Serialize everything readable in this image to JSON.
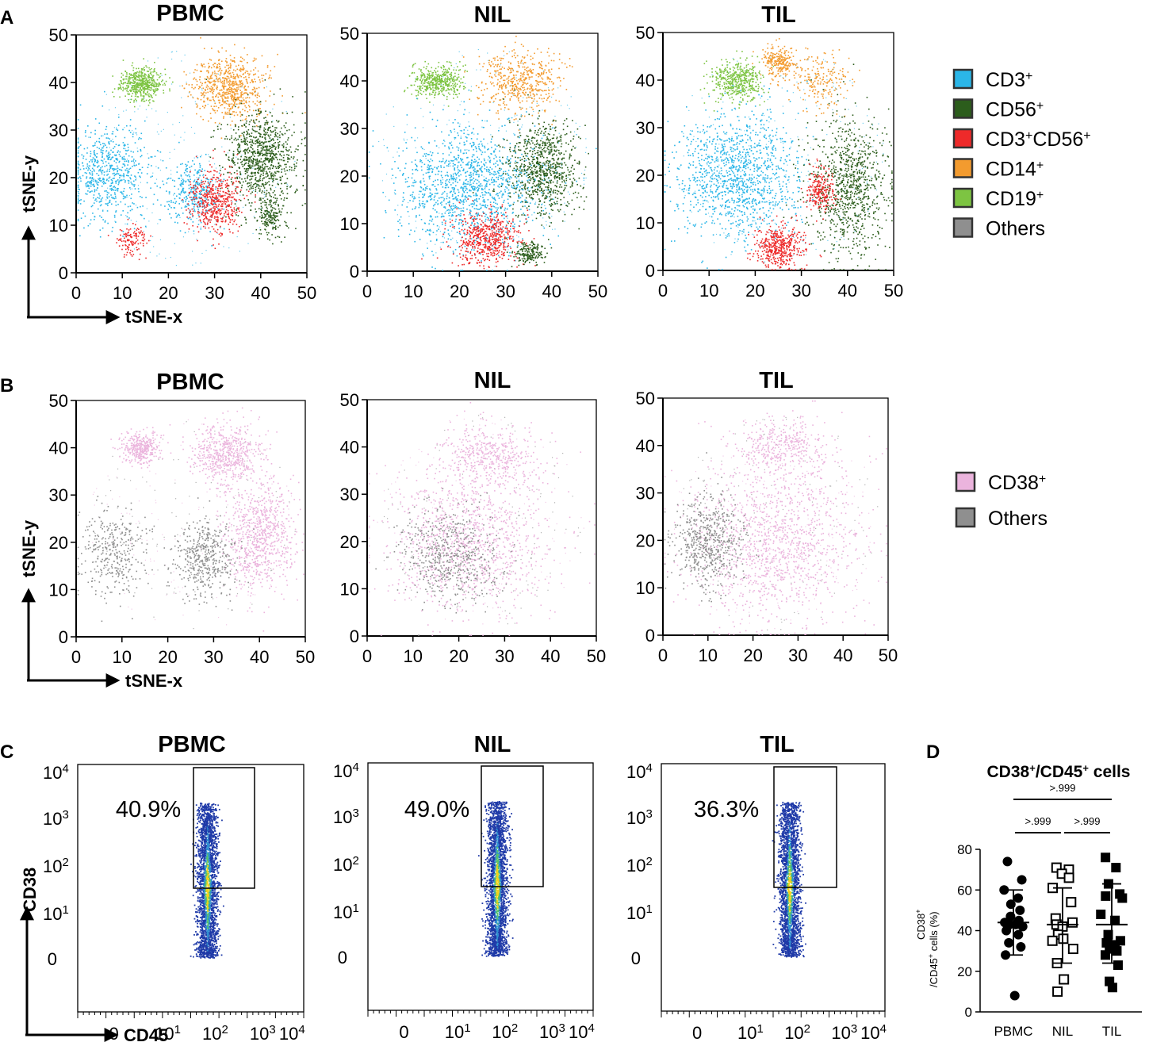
{
  "figure": {
    "panel_labels": {
      "a": "A",
      "b": "B",
      "c": "C",
      "d": "D"
    },
    "samples": [
      "PBMC",
      "NIL",
      "TIL"
    ],
    "tsne": {
      "x_axis_label": "tSNE-x",
      "y_axis_label": "tSNE-y",
      "ticks": [
        "0",
        "10",
        "20",
        "30",
        "40",
        "50"
      ]
    },
    "legend_a": [
      {
        "label": "CD3",
        "sup": "+",
        "color": "#2BB6E8"
      },
      {
        "label": "CD56",
        "sup": "+",
        "color": "#2C5D1C"
      },
      {
        "label": "CD3",
        "sup": "+",
        "label2": "CD56",
        "sup2": "+",
        "color": "#EE2A2A"
      },
      {
        "label": "CD14",
        "sup": "+",
        "color": "#F39B2F"
      },
      {
        "label": "CD19",
        "sup": "+",
        "color": "#7DC442"
      },
      {
        "label": "Others",
        "sup": "",
        "color": "#8F8F8F"
      }
    ],
    "legend_b": [
      {
        "label": "CD38",
        "sup": "+",
        "color": "#EBB4DD"
      },
      {
        "label": "Others",
        "sup": "",
        "color": "#8F8F8F"
      }
    ],
    "flow": {
      "x_axis_label": "CD45",
      "y_axis_label": "CD38",
      "tick_zero": "0",
      "tick_base": "10",
      "y_exponents": [
        "1",
        "2",
        "3",
        "4"
      ],
      "x_exponents": [
        "1",
        "2",
        "3",
        "4"
      ],
      "gate_percentages": [
        "40.9%",
        "49.0%",
        "36.3%"
      ]
    }
  },
  "chart_data": [
    {
      "type": "scatter",
      "panel": "A",
      "description_of_mark": "tSNE embedding colored by population",
      "facets": [
        "PBMC",
        "NIL",
        "TIL"
      ],
      "xlabel": "tSNE-x",
      "ylabel": "tSNE-y",
      "xlim": [
        0,
        50
      ],
      "ylim": [
        0,
        50
      ],
      "clusters": {
        "PBMC": [
          {
            "pop": "CD19+",
            "cx": 14,
            "cy": 40,
            "rx": 4,
            "ry": 3,
            "n": 500
          },
          {
            "pop": "CD14+",
            "cx": 33,
            "cy": 39,
            "rx": 7,
            "ry": 6,
            "n": 700
          },
          {
            "pop": "CD56+",
            "cx": 40,
            "cy": 24,
            "rx": 7,
            "ry": 9,
            "n": 900
          },
          {
            "pop": "CD3+",
            "cx": 7,
            "cy": 21,
            "rx": 8,
            "ry": 9,
            "n": 650
          },
          {
            "pop": "CD3+",
            "cx": 25,
            "cy": 17,
            "rx": 5,
            "ry": 6,
            "n": 350
          },
          {
            "pop": "CD3+CD56+",
            "cx": 30,
            "cy": 15,
            "rx": 5,
            "ry": 6,
            "n": 500
          },
          {
            "pop": "CD3+CD56+",
            "cx": 12,
            "cy": 7,
            "rx": 3,
            "ry": 3,
            "n": 120
          },
          {
            "pop": "CD56+",
            "cx": 42,
            "cy": 12,
            "rx": 3,
            "ry": 4,
            "n": 180
          }
        ],
        "NIL": [
          {
            "pop": "CD19+",
            "cx": 15,
            "cy": 40,
            "rx": 5,
            "ry": 3,
            "n": 450
          },
          {
            "pop": "CD14+",
            "cx": 33,
            "cy": 40,
            "rx": 8,
            "ry": 6,
            "n": 500
          },
          {
            "pop": "CD3+",
            "cx": 22,
            "cy": 18,
            "rx": 14,
            "ry": 12,
            "n": 1300
          },
          {
            "pop": "CD56+",
            "cx": 38,
            "cy": 22,
            "rx": 7,
            "ry": 9,
            "n": 800
          },
          {
            "pop": "CD3+CD56+",
            "cx": 26,
            "cy": 7,
            "rx": 7,
            "ry": 5,
            "n": 550
          },
          {
            "pop": "CD56+",
            "cx": 35,
            "cy": 4,
            "rx": 3,
            "ry": 2,
            "n": 180
          }
        ],
        "TIL": [
          {
            "pop": "CD19+",
            "cx": 16,
            "cy": 40,
            "rx": 5,
            "ry": 4,
            "n": 450
          },
          {
            "pop": "CD14+",
            "cx": 25,
            "cy": 44,
            "rx": 3,
            "ry": 3,
            "n": 250
          },
          {
            "pop": "CD14+",
            "cx": 34,
            "cy": 40,
            "rx": 7,
            "ry": 5,
            "n": 200
          },
          {
            "pop": "CD3+",
            "cx": 16,
            "cy": 20,
            "rx": 12,
            "ry": 12,
            "n": 1200
          },
          {
            "pop": "CD56+",
            "cx": 40,
            "cy": 18,
            "rx": 8,
            "ry": 13,
            "n": 900
          },
          {
            "pop": "CD3+CD56+",
            "cx": 25,
            "cy": 5,
            "rx": 5,
            "ry": 4,
            "n": 450
          },
          {
            "pop": "CD3+CD56+",
            "cx": 34,
            "cy": 17,
            "rx": 3,
            "ry": 4,
            "n": 220
          }
        ]
      }
    },
    {
      "type": "scatter",
      "panel": "B",
      "description_of_mark": "tSNE embedding colored by CD38 expression",
      "facets": [
        "PBMC",
        "NIL",
        "TIL"
      ],
      "xlabel": "tSNE-x",
      "ylabel": "tSNE-y",
      "xlim": [
        0,
        50
      ],
      "ylim": [
        0,
        50
      ],
      "clusters": {
        "PBMC": [
          {
            "pop": "CD38+",
            "cx": 14,
            "cy": 40,
            "rx": 4,
            "ry": 3,
            "n": 350
          },
          {
            "pop": "CD38+",
            "cx": 33,
            "cy": 39,
            "rx": 7,
            "ry": 6,
            "n": 600
          },
          {
            "pop": "CD38+",
            "cx": 40,
            "cy": 22,
            "rx": 7,
            "ry": 10,
            "n": 800
          },
          {
            "pop": "Others",
            "cx": 8,
            "cy": 18,
            "rx": 7,
            "ry": 8,
            "n": 350
          },
          {
            "pop": "Others",
            "cx": 28,
            "cy": 17,
            "rx": 6,
            "ry": 7,
            "n": 450
          }
        ],
        "NIL": [
          {
            "pop": "CD38+",
            "cx": 22,
            "cy": 20,
            "rx": 16,
            "ry": 14,
            "n": 1100
          },
          {
            "pop": "CD38+",
            "cx": 26,
            "cy": 38,
            "rx": 10,
            "ry": 6,
            "n": 450
          },
          {
            "pop": "Others",
            "cx": 18,
            "cy": 17,
            "rx": 10,
            "ry": 9,
            "n": 550
          }
        ],
        "TIL": [
          {
            "pop": "CD38+",
            "cx": 25,
            "cy": 20,
            "rx": 17,
            "ry": 16,
            "n": 1300
          },
          {
            "pop": "CD38+",
            "cx": 26,
            "cy": 40,
            "rx": 9,
            "ry": 5,
            "n": 350
          },
          {
            "pop": "Others",
            "cx": 10,
            "cy": 20,
            "rx": 7,
            "ry": 9,
            "n": 600
          }
        ]
      }
    },
    {
      "type": "scatter",
      "panel": "C",
      "description_of_mark": "flow cytometry density plot CD45 vs CD38 with gate",
      "facets": [
        "PBMC",
        "NIL",
        "TIL"
      ],
      "xlabel": "CD45",
      "ylabel": "CD38",
      "x_scale": "biexponential",
      "y_scale": "biexponential",
      "gate_label_values_percent": [
        40.9,
        49.0,
        36.3
      ]
    },
    {
      "type": "scatter",
      "panel": "D",
      "title": "CD38+/CD45+ cells",
      "ylabel": "CD38+/CD45+ cells (%)",
      "ylim": [
        0,
        80
      ],
      "yticks": [
        0,
        20,
        40,
        60,
        80
      ],
      "categories": [
        "PBMC",
        "NIL",
        "TIL"
      ],
      "series": [
        {
          "name": "PBMC",
          "marker": "filled-circle",
          "values": [
            74,
            65,
            60,
            56,
            53,
            50,
            47,
            45,
            44,
            43,
            43,
            42,
            40,
            38,
            34,
            32,
            28,
            8
          ],
          "mean": 44,
          "sd_upper": 60,
          "sd_lower": 28
        },
        {
          "name": "NIL",
          "marker": "open-square",
          "values": [
            71,
            70,
            68,
            66,
            61,
            54,
            46,
            44,
            43,
            42,
            38,
            36,
            35,
            31,
            24,
            16,
            10
          ],
          "mean": 43,
          "sd_upper": 61,
          "sd_lower": 24
        },
        {
          "name": "TIL",
          "marker": "filled-square",
          "values": [
            76,
            71,
            63,
            58,
            57,
            56,
            48,
            45,
            38,
            35,
            34,
            33,
            31,
            30,
            28,
            23,
            15,
            12
          ],
          "mean": 43,
          "sd_upper": 63,
          "sd_lower": 24
        }
      ],
      "comparisons": [
        {
          "pair": [
            "PBMC",
            "TIL"
          ],
          "p": ">.999"
        },
        {
          "pair": [
            "PBMC",
            "NIL"
          ],
          "p": ">.999"
        },
        {
          "pair": [
            "NIL",
            "TIL"
          ],
          "p": ">.999"
        }
      ]
    }
  ]
}
